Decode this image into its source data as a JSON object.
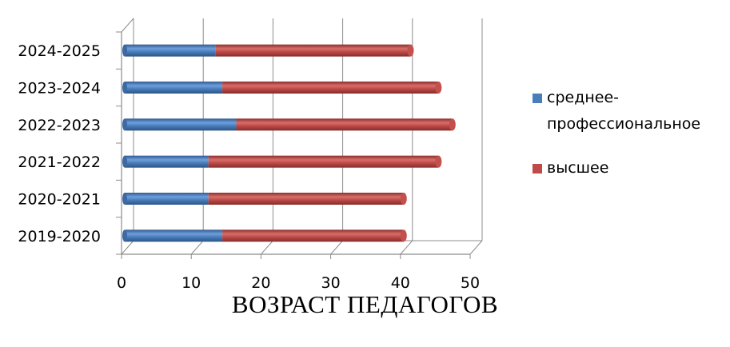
{
  "chart_data": {
    "type": "bar",
    "orientation": "horizontal",
    "stacked": true,
    "style": "3d-cylinder",
    "categories": [
      "2019-2020",
      "2020-2021",
      "2021-2022",
      "2022-2023",
      "2023-2024",
      "2024-2025"
    ],
    "series": [
      {
        "name": "среднее-профессиональное",
        "name_lines": [
          "среднее-",
          "профессиональное"
        ],
        "color": "#4a7ebb",
        "values": [
          14,
          12,
          12,
          16,
          14,
          13
        ]
      },
      {
        "name": "высшее",
        "name_lines": [
          "высшее"
        ],
        "color": "#be4b48",
        "values": [
          26,
          28,
          33,
          31,
          31,
          28
        ]
      }
    ],
    "x_ticks": [
      "0",
      "10",
      "20",
      "30",
      "40",
      "50"
    ],
    "xlim": [
      0,
      50
    ],
    "grid": true,
    "legend_position": "right"
  },
  "caption": "ВОЗРАСТ  ПЕДАГОГОВ"
}
